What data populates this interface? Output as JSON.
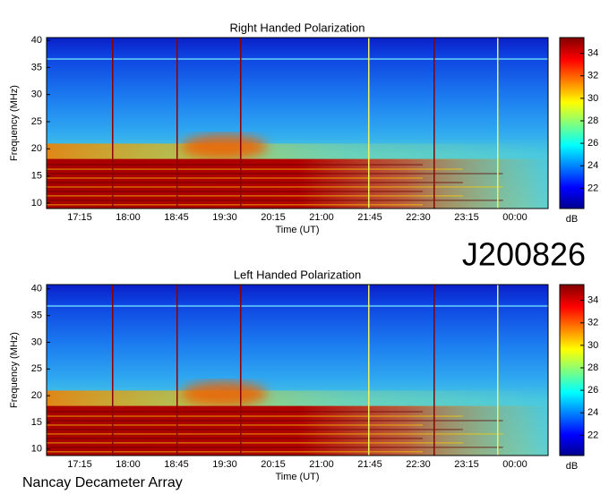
{
  "label": "J200826",
  "credit": "Nancay Decameter Array",
  "chart_data": [
    {
      "type": "spectrogram",
      "title": "Right Handed Polarization",
      "xlabel": "Time (UT)",
      "ylabel": "Frequency (MHz)",
      "xticks": [
        "17:15",
        "18:00",
        "18:45",
        "19:30",
        "20:15",
        "21:00",
        "21:45",
        "22:30",
        "23:15",
        "00:00"
      ],
      "ylim": [
        9,
        40.5
      ],
      "yticks": [
        10,
        15,
        20,
        25,
        30,
        35,
        40
      ],
      "colorbar": {
        "label": "dB",
        "lim": [
          20.2,
          35.4
        ],
        "ticks": [
          22,
          24,
          26,
          28,
          30,
          32,
          34
        ]
      }
    },
    {
      "type": "spectrogram",
      "title": "Left Handed Polarization",
      "xlabel": "Time (UT)",
      "ylabel": "Frequency (MHz)",
      "xticks": [
        "17:15",
        "18:00",
        "18:45",
        "19:30",
        "20:15",
        "21:00",
        "21:45",
        "22:30",
        "23:15",
        "00:00"
      ],
      "ylim": [
        8.8,
        40.8
      ],
      "yticks": [
        10,
        15,
        20,
        25,
        30,
        35,
        40
      ],
      "colorbar": {
        "label": "dB",
        "lim": [
          20.2,
          35.4
        ],
        "ticks": [
          22,
          24,
          26,
          28,
          30,
          32,
          34
        ]
      }
    }
  ]
}
